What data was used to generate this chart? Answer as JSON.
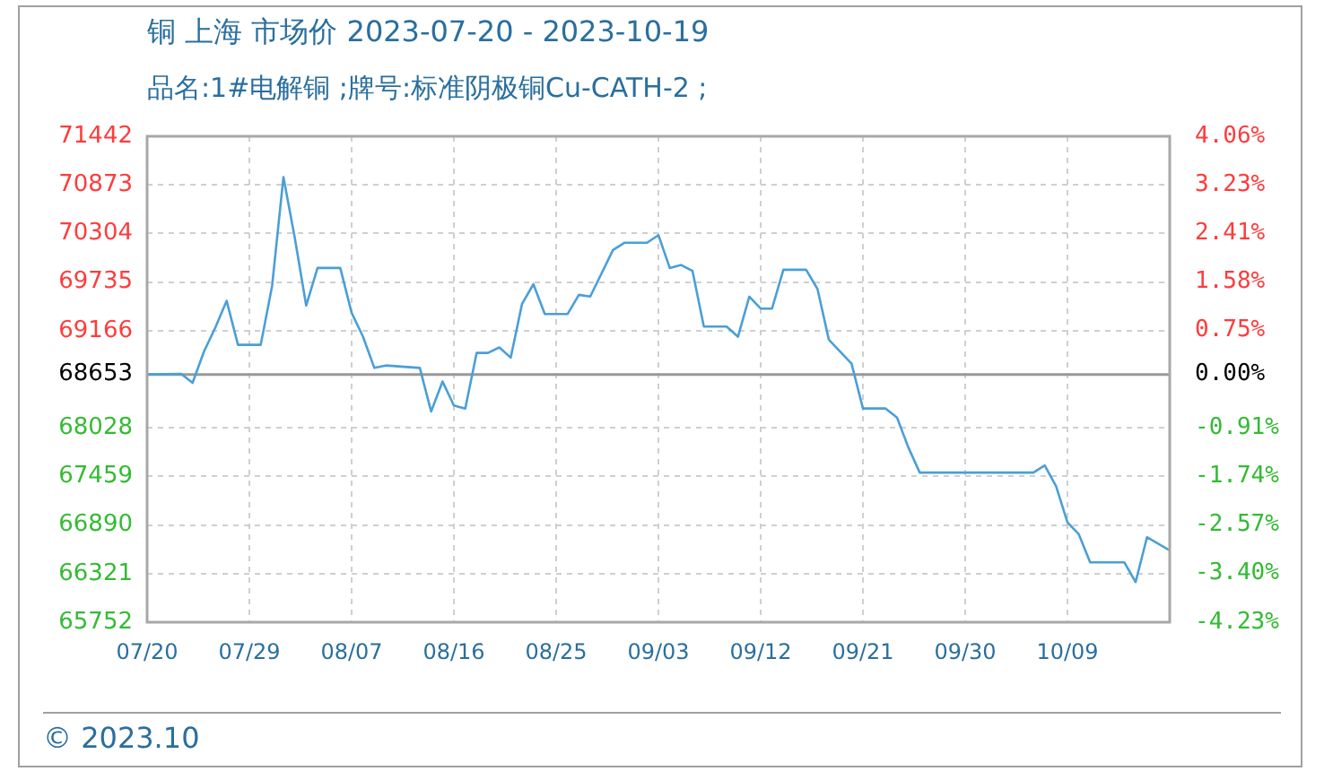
{
  "chart_data": {
    "type": "line",
    "title": "铜 上海 市场价 2023-07-20 - 2023-10-19",
    "subtitle": "品名:1#电解铜 ;牌号:标准阴极铜Cu-CATH-2 ;",
    "annotations": [
      "© 2023.10"
    ],
    "x": [
      "2023-07-20",
      "2023-07-23",
      "2023-07-24",
      "2023-07-25",
      "2023-07-26",
      "2023-07-27",
      "2023-07-28",
      "2023-07-30",
      "2023-07-31",
      "2023-08-01",
      "2023-08-02",
      "2023-08-03",
      "2023-08-04",
      "2023-08-06",
      "2023-08-07",
      "2023-08-08",
      "2023-08-09",
      "2023-08-10",
      "2023-08-13",
      "2023-08-14",
      "2023-08-15",
      "2023-08-16",
      "2023-08-17",
      "2023-08-18",
      "2023-08-19",
      "2023-08-20",
      "2023-08-21",
      "2023-08-22",
      "2023-08-23",
      "2023-08-24",
      "2023-08-26",
      "2023-08-27",
      "2023-08-28",
      "2023-08-30",
      "2023-08-31",
      "2023-09-02",
      "2023-09-03",
      "2023-09-04",
      "2023-09-05",
      "2023-09-06",
      "2023-09-07",
      "2023-09-09",
      "2023-09-10",
      "2023-09-11",
      "2023-09-12",
      "2023-09-13",
      "2023-09-14",
      "2023-09-16",
      "2023-09-17",
      "2023-09-18",
      "2023-09-20",
      "2023-09-21",
      "2023-09-23",
      "2023-09-24",
      "2023-09-25",
      "2023-09-26",
      "2023-10-06",
      "2023-10-07",
      "2023-10-08",
      "2023-10-09",
      "2023-10-10",
      "2023-10-11",
      "2023-10-14",
      "2023-10-15",
      "2023-10-16",
      "2023-10-18"
    ],
    "series": [
      {
        "color": "#4a9fd8",
        "values": [
          68653,
          68660,
          68555,
          68920,
          69200,
          69515,
          69000,
          69000,
          69690,
          70965,
          70250,
          69460,
          69900,
          69900,
          69375,
          69095,
          68730,
          68758,
          68730,
          68219,
          68570,
          68290,
          68254,
          68905,
          68905,
          68970,
          68850,
          69480,
          69710,
          69360,
          69360,
          69585,
          69565,
          70110,
          70195,
          70195,
          70285,
          69900,
          69935,
          69865,
          69214,
          69214,
          69095,
          69564,
          69424,
          69424,
          69879,
          69879,
          69655,
          69060,
          68780,
          68254,
          68254,
          68149,
          67798,
          67504,
          67504,
          67588,
          67343,
          66922,
          66782,
          66453,
          66453,
          66222,
          66747,
          66593
        ]
      }
    ],
    "xlim": [
      "2023-07-20",
      "2023-10-18"
    ],
    "xticks": [
      {
        "value": "2023-07-20",
        "label": "07/20"
      },
      {
        "value": "2023-07-29",
        "label": "07/29"
      },
      {
        "value": "2023-08-07",
        "label": "08/07"
      },
      {
        "value": "2023-08-16",
        "label": "08/16"
      },
      {
        "value": "2023-08-25",
        "label": "08/25"
      },
      {
        "value": "2023-09-03",
        "label": "09/03"
      },
      {
        "value": "2023-09-12",
        "label": "09/12"
      },
      {
        "value": "2023-09-21",
        "label": "09/21"
      },
      {
        "value": "2023-09-30",
        "label": "09/30"
      },
      {
        "value": "2023-10-09",
        "label": "10/09"
      }
    ],
    "ylim": [
      65752,
      71442
    ],
    "yticks": [
      65752,
      66321,
      66890,
      67459,
      68028,
      68653,
      69166,
      69735,
      70304,
      70873,
      71442
    ],
    "y2lim": [
      -4.23,
      4.06
    ],
    "y2ticks": [
      {
        "value": -4.23,
        "label": "-4.23%"
      },
      {
        "value": -3.4,
        "label": "-3.40%"
      },
      {
        "value": -2.57,
        "label": "-2.57%"
      },
      {
        "value": -1.74,
        "label": "-1.74%"
      },
      {
        "value": -0.91,
        "label": "-0.91%"
      },
      {
        "value": 0,
        "label": "0.00%"
      },
      {
        "value": 0.75,
        "label": "0.75%"
      },
      {
        "value": 1.58,
        "label": "1.58%"
      },
      {
        "value": 2.41,
        "label": "2.41%"
      },
      {
        "value": 3.23,
        "label": "3.23%"
      },
      {
        "value": 4.06,
        "label": "4.06%"
      }
    ],
    "ref_lines": [
      {
        "axis": "y",
        "value": 68653,
        "color": "#999999"
      }
    ],
    "grid": true,
    "marker": "none",
    "line_style": "solid"
  }
}
